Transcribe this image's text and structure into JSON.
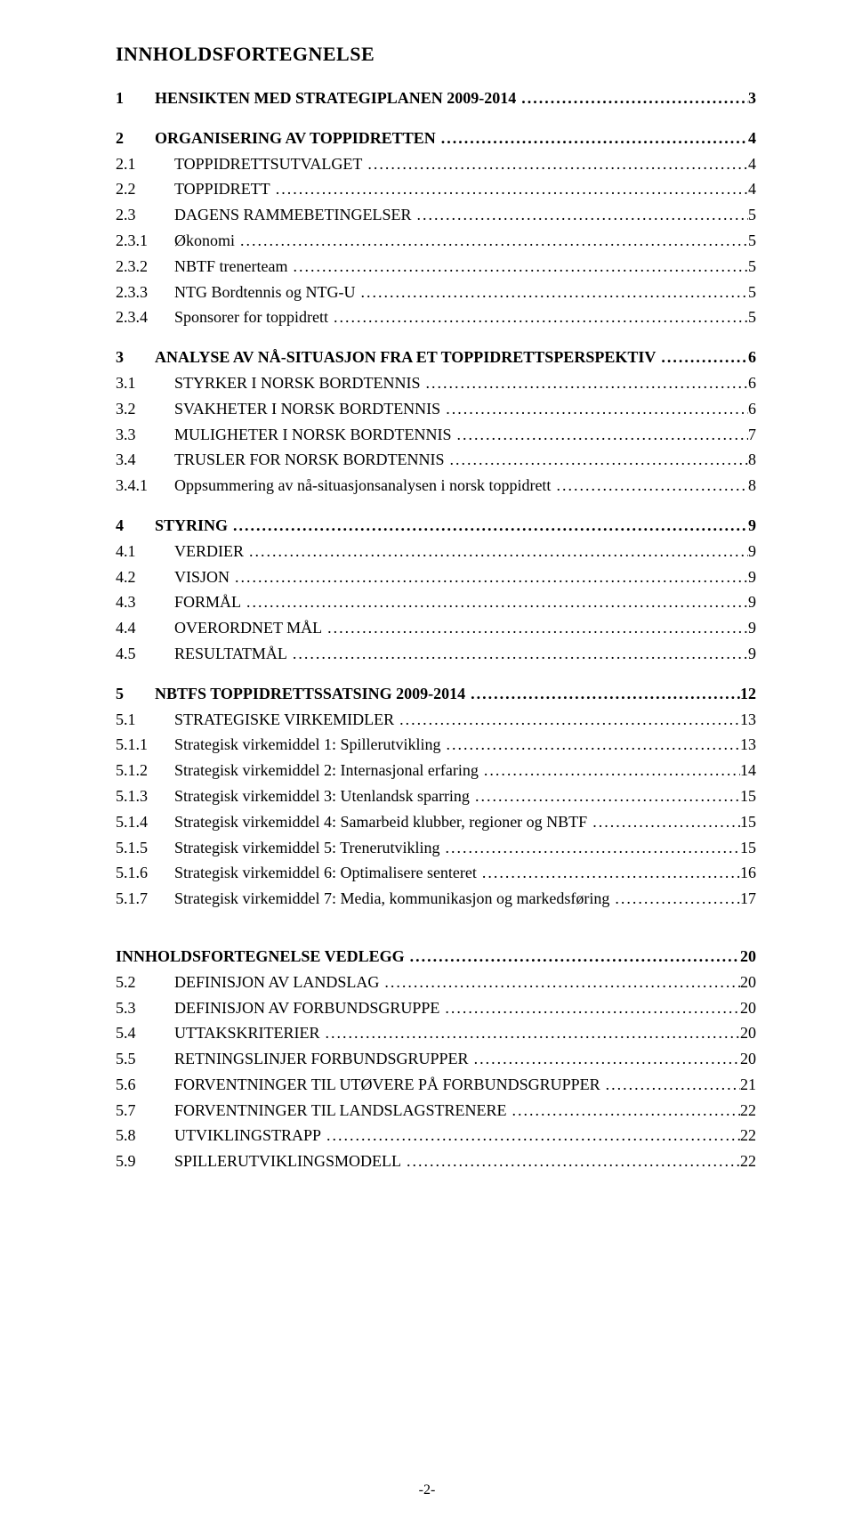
{
  "title": "INNHOLDSFORTEGNELSE",
  "appendix_title": "INNHOLDSFORTEGNELSE VEDLEGG",
  "appendix_page": "20",
  "footer": "-2-",
  "groups": [
    {
      "head": {
        "num": "1",
        "text": "HENSIKTEN MED STRATEGIPLANEN 2009-2014",
        "page": "3"
      },
      "items": []
    },
    {
      "head": {
        "num": "2",
        "text": "ORGANISERING AV TOPPIDRETTEN",
        "page": "4"
      },
      "items": [
        {
          "level": 2,
          "num": "2.1",
          "text": "TOPPIDRETTSUTVALGET",
          "page": "4"
        },
        {
          "level": 2,
          "num": "2.2",
          "text": "TOPPIDRETT",
          "page": "4"
        },
        {
          "level": 2,
          "num": "2.3",
          "text": "DAGENS RAMMEBETINGELSER",
          "page": "5"
        },
        {
          "level": 3,
          "num": "2.3.1",
          "text": "Økonomi",
          "page": "5"
        },
        {
          "level": 3,
          "num": "2.3.2",
          "text": "NBTF trenerteam",
          "page": "5"
        },
        {
          "level": 3,
          "num": "2.3.3",
          "text": "NTG Bordtennis og NTG-U",
          "page": "5"
        },
        {
          "level": 3,
          "num": "2.3.4",
          "text": "Sponsorer for toppidrett",
          "page": "5"
        }
      ]
    },
    {
      "head": {
        "num": "3",
        "text": "ANALYSE AV NÅ-SITUASJON FRA ET TOPPIDRETTSPERSPEKTIV",
        "page": "6"
      },
      "items": [
        {
          "level": 2,
          "num": "3.1",
          "text": "STYRKER I NORSK BORDTENNIS",
          "page": "6"
        },
        {
          "level": 2,
          "num": "3.2",
          "text": "SVAKHETER I NORSK BORDTENNIS",
          "page": "6"
        },
        {
          "level": 2,
          "num": "3.3",
          "text": "MULIGHETER I NORSK BORDTENNIS",
          "page": "7"
        },
        {
          "level": 2,
          "num": "3.4",
          "text": "TRUSLER FOR NORSK BORDTENNIS",
          "page": "8"
        },
        {
          "level": 3,
          "num": "3.4.1",
          "text": "Oppsummering av nå-situasjonsanalysen i norsk toppidrett",
          "page": "8"
        }
      ]
    },
    {
      "head": {
        "num": "4",
        "text": "STYRING",
        "page": "9"
      },
      "items": [
        {
          "level": 2,
          "num": "4.1",
          "text": "VERDIER",
          "page": "9"
        },
        {
          "level": 2,
          "num": "4.2",
          "text": "VISJON",
          "page": "9"
        },
        {
          "level": 2,
          "num": "4.3",
          "text": "FORMÅL",
          "page": "9"
        },
        {
          "level": 2,
          "num": "4.4",
          "text": "OVERORDNET MÅL",
          "page": "9"
        },
        {
          "level": 2,
          "num": "4.5",
          "text": "RESULTATMÅL",
          "page": "9"
        }
      ]
    },
    {
      "head": {
        "num": "5",
        "text": "NBTFS TOPPIDRETTSSATSING 2009-2014",
        "page": "12"
      },
      "items": [
        {
          "level": 2,
          "num": "5.1",
          "text": "STRATEGISKE VIRKEMIDLER",
          "page": "13"
        },
        {
          "level": 3,
          "num": "5.1.1",
          "text": "Strategisk virkemiddel 1: Spillerutvikling",
          "page": "13"
        },
        {
          "level": 3,
          "num": "5.1.2",
          "text": "Strategisk virkemiddel 2: Internasjonal erfaring",
          "page": "14"
        },
        {
          "level": 3,
          "num": "5.1.3",
          "text": "Strategisk virkemiddel 3: Utenlandsk sparring",
          "page": "15"
        },
        {
          "level": 3,
          "num": "5.1.4",
          "text": "Strategisk virkemiddel 4: Samarbeid klubber, regioner og NBTF",
          "page": "15"
        },
        {
          "level": 3,
          "num": "5.1.5",
          "text": "Strategisk virkemiddel 5: Trenerutvikling",
          "page": "15"
        },
        {
          "level": 3,
          "num": "5.1.6",
          "text": "Strategisk virkemiddel 6: Optimalisere senteret",
          "page": "16"
        },
        {
          "level": 3,
          "num": "5.1.7",
          "text": "Strategisk virkemiddel 7: Media, kommunikasjon og markedsføring",
          "page": "17"
        }
      ]
    }
  ],
  "appendix_items": [
    {
      "level": 2,
      "num": "5.2",
      "text": "DEFINISJON AV LANDSLAG",
      "page": "20"
    },
    {
      "level": 2,
      "num": "5.3",
      "text": "DEFINISJON AV FORBUNDSGRUPPE",
      "page": "20"
    },
    {
      "level": 2,
      "num": "5.4",
      "text": "UTTAKSKRITERIER",
      "page": "20"
    },
    {
      "level": 2,
      "num": "5.5",
      "text": "RETNINGSLINJER FORBUNDSGRUPPER",
      "page": "20"
    },
    {
      "level": 2,
      "num": "5.6",
      "text": "FORVENTNINGER TIL UTØVERE PÅ FORBUNDSGRUPPER",
      "page": "21"
    },
    {
      "level": 2,
      "num": "5.7",
      "text": "FORVENTNINGER TIL LANDSLAGSTRENERE",
      "page": "22"
    },
    {
      "level": 2,
      "num": "5.8",
      "text": "UTVIKLINGSTRAPP",
      "page": "22"
    },
    {
      "level": 2,
      "num": "5.9",
      "text": "SPILLERUTVIKLINGSMODELL",
      "page": "22"
    }
  ]
}
